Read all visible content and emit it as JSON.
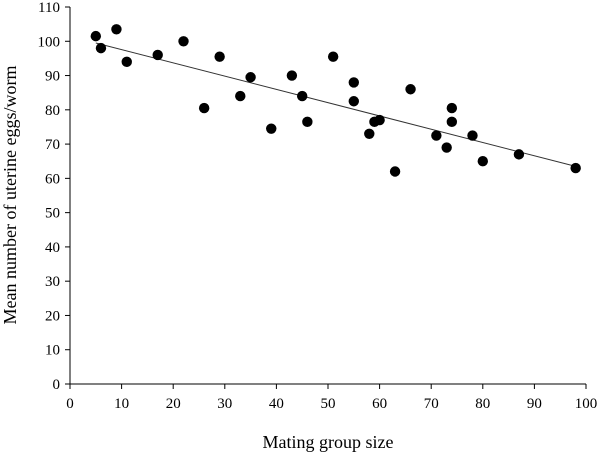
{
  "chart_data": {
    "type": "scatter",
    "title": "",
    "xlabel": "Mating group size",
    "ylabel": "Mean number of uterine eggs/worm",
    "xlim": [
      0,
      100
    ],
    "ylim": [
      0,
      110
    ],
    "x_ticks": [
      0,
      10,
      20,
      30,
      40,
      50,
      60,
      70,
      80,
      90,
      100
    ],
    "y_ticks": [
      0,
      10,
      20,
      30,
      40,
      50,
      60,
      70,
      80,
      90,
      100,
      110
    ],
    "grid": false,
    "legend": "none",
    "marker_color": "#000000",
    "points": [
      {
        "x": 5,
        "y": 101.5
      },
      {
        "x": 6,
        "y": 98
      },
      {
        "x": 9,
        "y": 103.5
      },
      {
        "x": 11,
        "y": 94
      },
      {
        "x": 17,
        "y": 96
      },
      {
        "x": 22,
        "y": 100
      },
      {
        "x": 26,
        "y": 80.5
      },
      {
        "x": 29,
        "y": 95.5
      },
      {
        "x": 33,
        "y": 84
      },
      {
        "x": 35,
        "y": 89.5
      },
      {
        "x": 39,
        "y": 74.5
      },
      {
        "x": 43,
        "y": 90
      },
      {
        "x": 45,
        "y": 84
      },
      {
        "x": 46,
        "y": 76.5
      },
      {
        "x": 51,
        "y": 95.5
      },
      {
        "x": 55,
        "y": 88
      },
      {
        "x": 55,
        "y": 82.5
      },
      {
        "x": 58,
        "y": 73
      },
      {
        "x": 59,
        "y": 76.5
      },
      {
        "x": 60,
        "y": 77
      },
      {
        "x": 63,
        "y": 62
      },
      {
        "x": 66,
        "y": 86
      },
      {
        "x": 71,
        "y": 72.5
      },
      {
        "x": 73,
        "y": 69
      },
      {
        "x": 74,
        "y": 80.5
      },
      {
        "x": 74,
        "y": 76.5
      },
      {
        "x": 78,
        "y": 72.5
      },
      {
        "x": 80,
        "y": 65
      },
      {
        "x": 87,
        "y": 67
      },
      {
        "x": 98,
        "y": 63
      }
    ],
    "trendline": {
      "x": [
        5,
        98
      ],
      "y": [
        99.5,
        63.5
      ]
    }
  }
}
